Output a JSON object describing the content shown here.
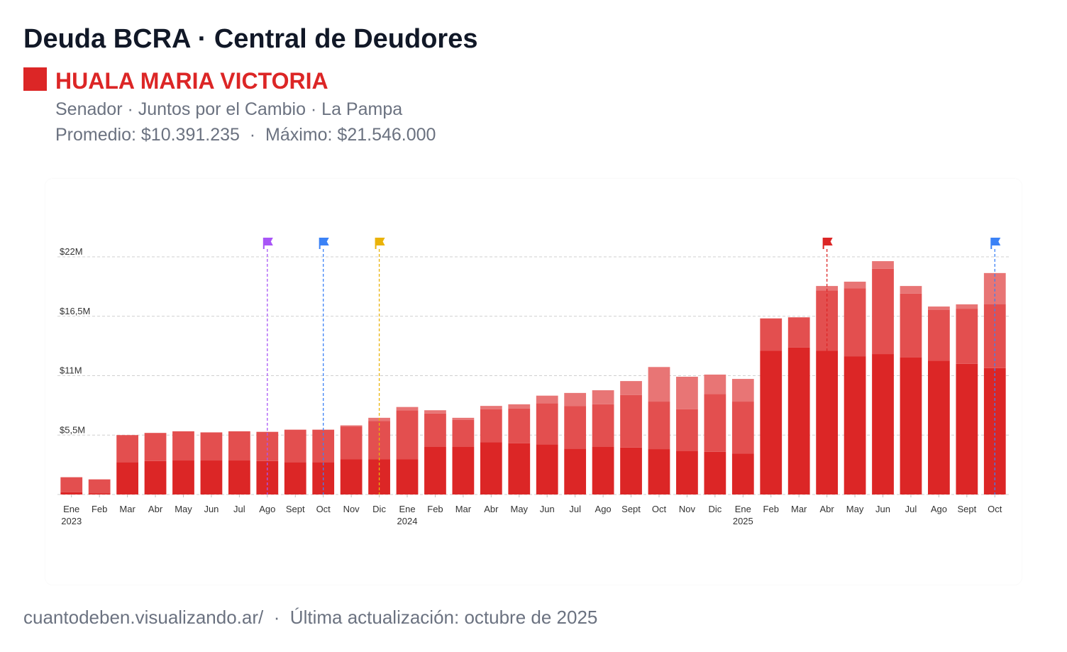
{
  "header": {
    "title": "Deuda BCRA · Central de Deudores",
    "name": "HUALA MARIA VICTORIA",
    "subtitle": "Senador · Juntos por el Cambio · La Pampa",
    "stats": "Promedio: $10.391.235  ·  Máximo: $21.546.000"
  },
  "footer": {
    "text": "cuantodeben.visualizando.ar/  ·  Última actualización: octubre de 2025"
  },
  "chart_data": {
    "type": "bar",
    "stacked": true,
    "ylim": [
      0,
      22000000
    ],
    "yticks": [
      {
        "value": 5500000,
        "label": "$5,5M"
      },
      {
        "value": 11000000,
        "label": "$11M"
      },
      {
        "value": 16500000,
        "label": "$16,5M"
      },
      {
        "value": 22000000,
        "label": "$22M"
      }
    ],
    "grid": true,
    "categories": [
      "Ene",
      "Feb",
      "Mar",
      "Abr",
      "May",
      "Jun",
      "Jul",
      "Ago",
      "Sept",
      "Oct",
      "Nov",
      "Dic",
      "Ene",
      "Feb",
      "Mar",
      "Abr",
      "May",
      "Jun",
      "Jul",
      "Ago",
      "Sept",
      "Oct",
      "Nov",
      "Dic",
      "Ene",
      "Feb",
      "Mar",
      "Abr",
      "May",
      "Jun",
      "Jul",
      "Ago",
      "Sept",
      "Oct"
    ],
    "year_labels": [
      "2023",
      "",
      "",
      "",
      "",
      "",
      "",
      "",
      "",
      "",
      "",
      "",
      "2024",
      "",
      "",
      "",
      "",
      "",
      "",
      "",
      "",
      "",
      "",
      "",
      "2025",
      "",
      "",
      "",
      "",
      "",
      "",
      "",
      "",
      ""
    ],
    "series": [
      {
        "color": "#dc2626",
        "values": [
          200000,
          100000,
          3000000,
          3100000,
          3150000,
          3150000,
          3150000,
          3100000,
          3000000,
          3000000,
          3250000,
          3250000,
          3250000,
          4400000,
          4400000,
          4850000,
          4750000,
          4650000,
          4250000,
          4400000,
          4350000,
          4200000,
          4050000,
          3950000,
          3800000,
          13300000,
          13600000,
          13300000,
          12800000,
          13000000,
          12700000,
          12400000,
          12100000,
          11700000
        ]
      },
      {
        "color": "#e34f4f",
        "values": [
          1400000,
          1300000,
          2500000,
          2600000,
          2700000,
          2600000,
          2700000,
          2700000,
          3000000,
          3000000,
          3050000,
          3550000,
          4550000,
          3100000,
          2500000,
          3050000,
          3200000,
          3800000,
          3950000,
          3950000,
          4850000,
          4400000,
          3850000,
          5350000,
          4800000,
          3000000,
          2800000,
          5600000,
          6300000,
          7900000,
          5900000,
          4700000,
          5100000,
          5900000
        ]
      },
      {
        "color": "#e87575",
        "values": [
          0,
          0,
          0,
          0,
          0,
          0,
          0,
          0,
          0,
          0,
          100000,
          300000,
          300000,
          300000,
          200000,
          300000,
          400000,
          700000,
          1200000,
          1300000,
          1300000,
          3200000,
          3000000,
          1800000,
          2100000,
          0,
          0,
          400000,
          600000,
          700000,
          700000,
          300000,
          400000,
          2900000
        ]
      }
    ],
    "markers": [
      {
        "index": 7,
        "color": "#a855f7"
      },
      {
        "index": 9,
        "color": "#3b82f6"
      },
      {
        "index": 11,
        "color": "#eab308"
      },
      {
        "index": 27,
        "color": "#dc2626"
      },
      {
        "index": 33,
        "color": "#3b82f6"
      }
    ]
  }
}
